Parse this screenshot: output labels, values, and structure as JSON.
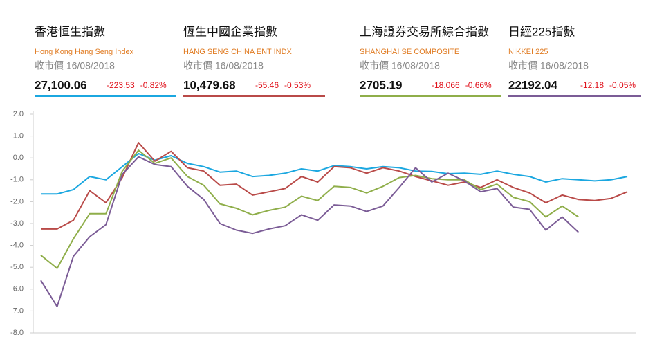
{
  "panels": [
    {
      "name_zh": "香港恒生指數",
      "name_en": "Hong Kong Hang Seng Index",
      "date_label": "收市價 16/08/2018",
      "close": "27,100.06",
      "change": "-223.53",
      "change_pct": "-0.82%",
      "color": "#1ba7e0"
    },
    {
      "name_zh": "恆生中國企業指數",
      "name_en": "HANG SENG CHINA ENT INDX",
      "date_label": "收市價 16/08/2018",
      "close": "10,479.68",
      "change": "-55.46",
      "change_pct": "-0.53%",
      "color": "#b94a48"
    },
    {
      "name_zh": "上海證券交易所綜合指數",
      "name_en": "SHANGHAI SE COMPOSITE",
      "date_label": "收市價 16/08/2018",
      "close": "2705.19",
      "change": "-18.066",
      "change_pct": "-0.66%",
      "color": "#8fae4a"
    },
    {
      "name_zh": "日經225指數",
      "name_en": "NIKKEI 225",
      "date_label": "收市價 16/08/2018",
      "close": "22192.04",
      "change": "-12.18",
      "change_pct": "-0.05%",
      "color": "#7b5c96"
    }
  ],
  "chart_data": {
    "type": "line",
    "categories": [
      null,
      null,
      null,
      null,
      null,
      null,
      null,
      null,
      null,
      null,
      null,
      null,
      null,
      null,
      null,
      null,
      null,
      null,
      null,
      null,
      null,
      null,
      null,
      null,
      null,
      null,
      null,
      null,
      null,
      null,
      null,
      null,
      null,
      null,
      null,
      null,
      null
    ],
    "series": [
      {
        "name": "Hong Kong Hang Seng Index",
        "color": "#1ba7e0",
        "values": [
          -1.65,
          -1.65,
          -1.45,
          -0.85,
          -1.0,
          -0.4,
          0.2,
          -0.1,
          0.1,
          -0.25,
          -0.4,
          -0.65,
          -0.6,
          -0.85,
          -0.8,
          -0.7,
          -0.5,
          -0.6,
          -0.35,
          -0.4,
          -0.5,
          -0.4,
          -0.45,
          -0.6,
          -0.62,
          -0.72,
          -0.7,
          -0.75,
          -0.6,
          -0.75,
          -0.85,
          -1.1,
          -0.95,
          -1.0,
          -1.05,
          -1.0,
          -0.85
        ]
      },
      {
        "name": "HANG SENG CHINA ENT INDX",
        "color": "#b94a48",
        "values": [
          -3.25,
          -3.25,
          -2.85,
          -1.5,
          -2.05,
          -0.9,
          0.7,
          -0.15,
          0.3,
          -0.45,
          -0.6,
          -1.25,
          -1.2,
          -1.7,
          -1.55,
          -1.4,
          -0.85,
          -1.1,
          -0.4,
          -0.45,
          -0.7,
          -0.45,
          -0.6,
          -0.85,
          -1.05,
          -1.25,
          -1.1,
          -1.35,
          -1.0,
          -1.35,
          -1.6,
          -2.05,
          -1.7,
          -1.9,
          -1.95,
          -1.85,
          -1.55
        ]
      },
      {
        "name": "SHANGHAI SE COMPOSITE",
        "color": "#8fae4a",
        "values": [
          -4.45,
          -5.05,
          -3.7,
          -2.55,
          -2.55,
          -0.6,
          0.35,
          -0.25,
          0.0,
          -0.85,
          -1.25,
          -2.1,
          -2.3,
          -2.6,
          -2.4,
          -2.25,
          -1.75,
          -1.95,
          -1.3,
          -1.35,
          -1.6,
          -1.3,
          -0.9,
          -0.8,
          -0.95,
          -1.0,
          -1.0,
          -1.45,
          -1.2,
          -1.8,
          -2.0,
          -2.7,
          -2.2,
          -2.7,
          null,
          null,
          null
        ]
      },
      {
        "name": "NIKKEI 225",
        "color": "#7b5c96",
        "values": [
          -5.6,
          -6.8,
          -4.5,
          -3.6,
          -3.05,
          -0.75,
          0.05,
          -0.3,
          -0.4,
          -1.3,
          -1.9,
          -3.0,
          -3.3,
          -3.45,
          -3.25,
          -3.1,
          -2.6,
          -2.85,
          -2.15,
          -2.2,
          -2.45,
          -2.2,
          -1.35,
          -0.45,
          -1.1,
          -0.7,
          -1.05,
          -1.55,
          -1.4,
          -2.25,
          -2.35,
          -3.3,
          -2.7,
          -3.4,
          null,
          null,
          null
        ]
      }
    ],
    "ylim": [
      -8,
      2
    ],
    "yticks": [
      {
        "value": 2,
        "label": "2.0"
      },
      {
        "value": 1,
        "label": "1.0"
      },
      {
        "value": 0,
        "label": "0.0"
      },
      {
        "value": -1,
        "label": "-1.0"
      },
      {
        "value": -2,
        "label": "-2.0"
      },
      {
        "value": -3,
        "label": "-3.0"
      },
      {
        "value": -4,
        "label": "-4.0"
      },
      {
        "value": -5,
        "label": "-5.0"
      },
      {
        "value": -6,
        "label": "-6.0"
      },
      {
        "value": -7,
        "label": "-7.0"
      },
      {
        "value": -8,
        "label": "-8.0"
      }
    ],
    "grid": false
  }
}
